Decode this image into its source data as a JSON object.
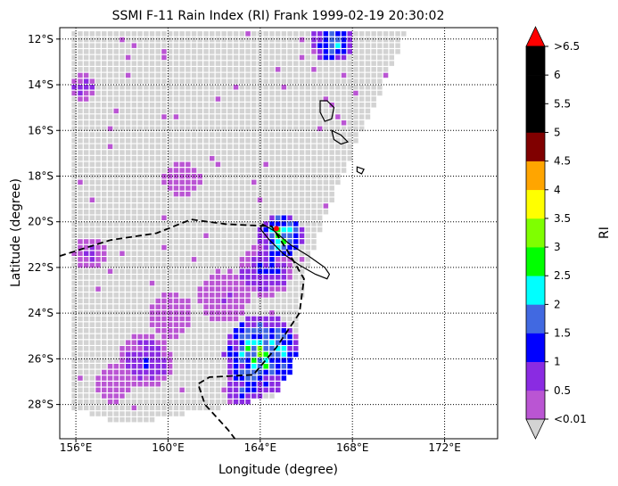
{
  "title": "SSMI F-11 Rain Index (RI) Frank 1999-02-19 20:30:02",
  "xlabel": "Longitude (degree)",
  "ylabel": "Latitude (degree)",
  "colorbar_label": "RI",
  "chart_data": {
    "type": "heatmap",
    "title": "SSMI F-11 Rain Index (RI) Frank 1999-02-19 20:30:02",
    "xlabel": "Longitude (degree)",
    "ylabel": "Latitude (degree)",
    "xlim": [
      155.3,
      174.3
    ],
    "ylim": [
      -29.5,
      -11.5
    ],
    "xticks": [
      156,
      160,
      164,
      168,
      172
    ],
    "xtick_labels": [
      "156°E",
      "160°E",
      "164°E",
      "168°E",
      "172°E"
    ],
    "yticks": [
      -12,
      -14,
      -16,
      -18,
      -20,
      -22,
      -24,
      -26,
      -28
    ],
    "ytick_labels": [
      "12°S",
      "14°S",
      "16°S",
      "18°S",
      "20°S",
      "22°S",
      "24°S",
      "26°S",
      "28°S"
    ],
    "grid": true,
    "no_rain_color": "#cccccc",
    "colorbar": {
      "label": "RI",
      "bounds": [
        0.01,
        0.5,
        1,
        1.5,
        2,
        2.5,
        3,
        3.5,
        4,
        4.5,
        5,
        5.5,
        6,
        6.5
      ],
      "tick_labels": [
        "<0.01",
        "0.5",
        "1",
        "1.5",
        "2",
        "2.5",
        "3",
        "3.5",
        "4",
        "4.5",
        "5",
        "5.5",
        "6",
        ">6.5"
      ],
      "colors": [
        "#ba55d3",
        "#8a2be2",
        "#0000ff",
        "#4169e1",
        "#00ffff",
        "#00ff00",
        "#7fff00",
        "#ffff00",
        "#ffa500",
        "#800000",
        "#000000",
        "#000000",
        "#000000"
      ],
      "under_color": "#d3d3d3",
      "over_color": "#ff0000"
    },
    "swath": [
      [
        155.6,
        -11.5
      ],
      [
        170.3,
        -11.5
      ],
      [
        169.2,
        -14.0
      ],
      [
        168.0,
        -16.6
      ],
      [
        166.8,
        -19.5
      ],
      [
        165.9,
        -22.0
      ],
      [
        165.6,
        -24.0
      ],
      [
        165.4,
        -26.3
      ],
      [
        164.5,
        -27.6
      ],
      [
        158.0,
        -28.8
      ],
      [
        155.6,
        -28.0
      ]
    ],
    "rain_clusters": [
      {
        "lon": 164.0,
        "lat": -25.7,
        "r": 1.7,
        "peak": 3.2
      },
      {
        "lon": 164.8,
        "lat": -20.5,
        "r": 1.0,
        "peak": 3.3
      },
      {
        "lon": 167.0,
        "lat": -12.0,
        "r": 0.9,
        "peak": 2.8
      },
      {
        "lon": 164.1,
        "lat": -22.0,
        "r": 1.2,
        "peak": 1.4
      },
      {
        "lon": 158.9,
        "lat": -26.0,
        "r": 1.2,
        "peak": 1.2
      },
      {
        "lon": 163.2,
        "lat": -27.2,
        "r": 0.9,
        "peak": 1.5
      },
      {
        "lon": 162.3,
        "lat": -23.2,
        "r": 1.1,
        "peak": 0.6
      },
      {
        "lon": 160.0,
        "lat": -24.0,
        "r": 1.0,
        "peak": 0.5
      },
      {
        "lon": 156.2,
        "lat": -14.0,
        "r": 0.6,
        "peak": 1.2
      },
      {
        "lon": 156.5,
        "lat": -21.3,
        "r": 0.7,
        "peak": 1.0
      },
      {
        "lon": 165.8,
        "lat": -26.1,
        "r": 0.7,
        "peak": 1.3
      },
      {
        "lon": 160.5,
        "lat": -18.0,
        "r": 0.8,
        "peak": 0.5
      },
      {
        "lon": 157.5,
        "lat": -27.0,
        "r": 0.8,
        "peak": 0.6
      }
    ],
    "cyclone_track": [
      [
        155.3,
        -21.5
      ],
      [
        157.5,
        -20.8
      ],
      [
        159.5,
        -20.5
      ],
      [
        161.0,
        -19.9
      ],
      [
        162.5,
        -20.1
      ],
      [
        164.5,
        -20.2
      ],
      [
        165.2,
        -21.3
      ],
      [
        165.9,
        -22.5
      ],
      [
        165.7,
        -24.0
      ],
      [
        164.7,
        -25.5
      ],
      [
        163.7,
        -26.7
      ],
      [
        161.8,
        -26.8
      ],
      [
        161.3,
        -27.1
      ],
      [
        161.6,
        -28.0
      ],
      [
        162.6,
        -29.1
      ],
      [
        162.9,
        -29.5
      ]
    ],
    "island_new_caledonia": [
      [
        164.1,
        -20.1
      ],
      [
        164.6,
        -20.4
      ],
      [
        165.3,
        -21.0
      ],
      [
        166.1,
        -21.5
      ],
      [
        166.8,
        -22.0
      ],
      [
        167.0,
        -22.3
      ],
      [
        166.9,
        -22.5
      ],
      [
        166.4,
        -22.3
      ],
      [
        165.7,
        -21.9
      ],
      [
        165.0,
        -21.4
      ],
      [
        164.4,
        -20.8
      ],
      [
        164.0,
        -20.3
      ]
    ],
    "island_espiritu_santo": [
      [
        166.6,
        -14.7
      ],
      [
        166.9,
        -14.7
      ],
      [
        167.2,
        -15.0
      ],
      [
        167.1,
        -15.5
      ],
      [
        166.8,
        -15.6
      ],
      [
        166.6,
        -15.2
      ]
    ],
    "island_malekula": [
      [
        167.1,
        -16.0
      ],
      [
        167.5,
        -16.2
      ],
      [
        167.8,
        -16.5
      ],
      [
        167.5,
        -16.6
      ],
      [
        167.2,
        -16.4
      ]
    ],
    "island_efate": [
      [
        168.2,
        -17.6
      ],
      [
        168.5,
        -17.7
      ],
      [
        168.4,
        -17.9
      ],
      [
        168.2,
        -17.8
      ]
    ]
  }
}
